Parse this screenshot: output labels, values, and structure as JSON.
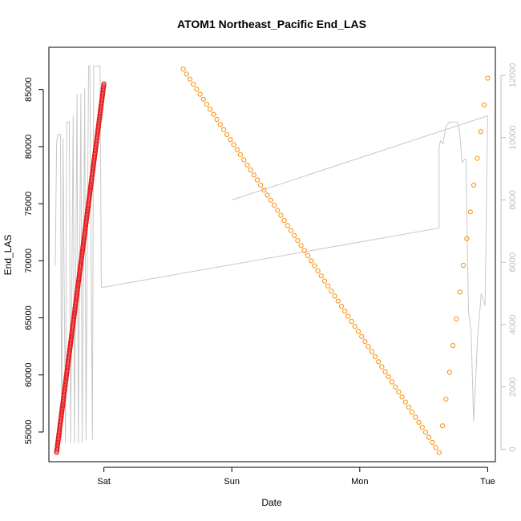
{
  "chart_data": {
    "type": "scatter",
    "title": "ATOM1 Northeast_Pacific End_LAS",
    "xlabel": "Date",
    "ylabel": "End_LAS",
    "x_ticks": [
      "Sat",
      "Sun",
      "Mon",
      "Tue"
    ],
    "y_ticks": [
      55000,
      60000,
      65000,
      70000,
      75000,
      80000,
      85000
    ],
    "y2_ticks": [
      0,
      2000,
      4000,
      6000,
      8000,
      10000,
      12000
    ],
    "xlim_days": [
      -0.43,
      3.06
    ],
    "ylim": [
      52400,
      88700
    ],
    "y2lim": [
      -400,
      12900
    ],
    "colors": {
      "series_red": "#e41a1c",
      "series_orange": "#ff8c00",
      "secondary_line": "#c8c8c8",
      "right_axis": "#bdbdbd",
      "frame": "#000000"
    },
    "series": [
      {
        "x": [
          -0.37,
          0.0
        ],
        "y": [
          53200,
          85500
        ]
      },
      {
        "x": [
          0.62,
          2.62,
          3.0
        ],
        "y": [
          86800,
          53200,
          86000
        ]
      }
    ],
    "secondary_line": {
      "x": [
        -0.38,
        -0.37,
        -0.36,
        -0.34,
        -0.33,
        -0.32,
        -0.3,
        -0.29,
        -0.27,
        -0.26,
        -0.24,
        -0.23,
        -0.21,
        -0.2,
        -0.18,
        -0.17,
        -0.15,
        -0.14,
        -0.12,
        -0.11,
        -0.09,
        -0.08,
        -0.06,
        -0.05,
        -0.04,
        -0.03,
        -0.02,
        0.0,
        0.0,
        2.62,
        2.62,
        2.63,
        2.65,
        2.67,
        2.68,
        2.7,
        2.74,
        2.76,
        2.77,
        2.78,
        2.8,
        2.82,
        2.83,
        2.85,
        2.87,
        2.89,
        2.92,
        2.95,
        2.98,
        3.0,
        1.0
      ],
      "y2": [
        5900,
        9850,
        10100,
        10100,
        200,
        10000,
        200,
        10500,
        10500,
        200,
        10700,
        200,
        11400,
        200,
        11400,
        200,
        11600,
        300,
        12300,
        12300,
        300,
        12300,
        12300,
        12300,
        12300,
        12300,
        5200,
        5200,
        5200,
        7100,
        9700,
        9900,
        9800,
        10300,
        10400,
        10500,
        10500,
        10500,
        10400,
        10200,
        9200,
        9300,
        9300,
        4400,
        3800,
        900,
        3500,
        5000,
        4600,
        10700,
        8000
      ]
    }
  }
}
